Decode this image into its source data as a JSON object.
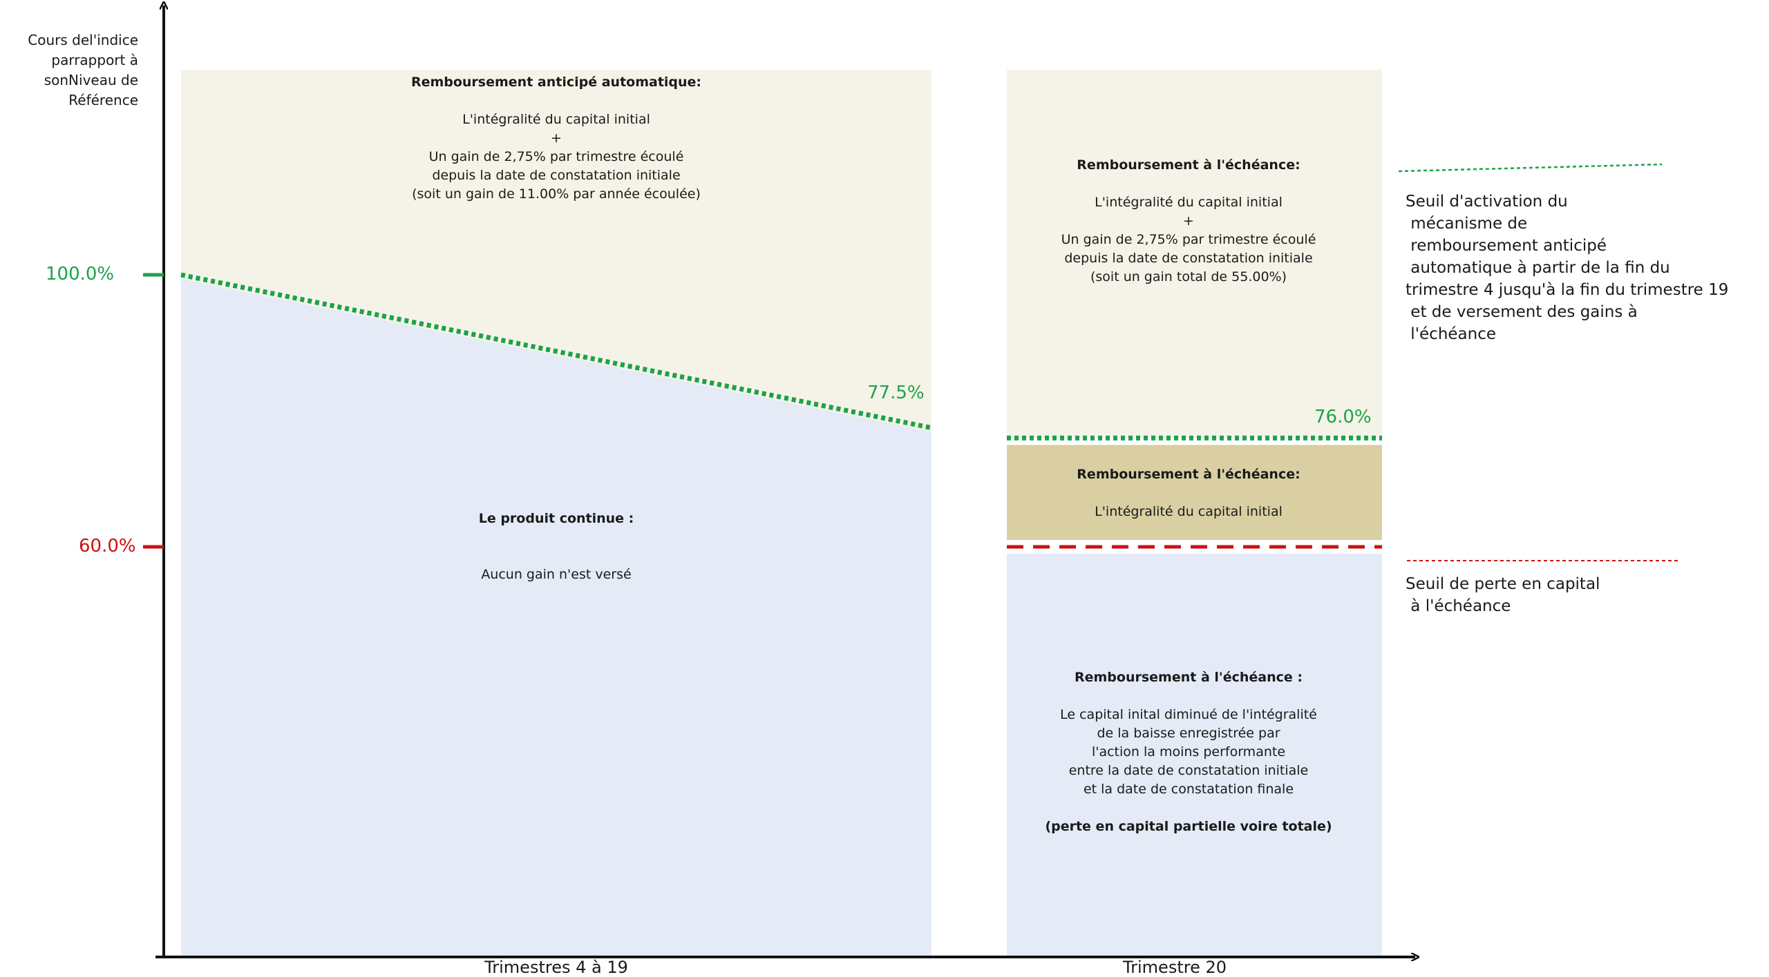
{
  "y_axis": {
    "title_lines": [
      "Cours de",
      "l'indice par",
      "rapport à son",
      "Niveau de Référence"
    ]
  },
  "levels": {
    "autocall": {
      "label": "100.0%",
      "value": 100.0,
      "color": "#1aa34a"
    },
    "barrier": {
      "label": "60.0%",
      "value": 60.0,
      "color": "#cc1111"
    }
  },
  "periods": [
    {
      "label": "Trimestres 4 à 19",
      "threshold_start": 100.0,
      "threshold_end": 77.5,
      "threshold_end_label": "77.5%",
      "upper_zone": {
        "lines": [
          {
            "text": "Remboursement anticipé automatique:",
            "bold": true
          },
          {
            "text": "",
            "gap": true
          },
          {
            "text": "L'intégralité du capital initial"
          },
          {
            "text": "+"
          },
          {
            "text": "Un gain de 2,75% par trimestre écoulé"
          },
          {
            "text": "depuis la date de constatation initiale"
          },
          {
            "text": "(soit un gain de 11.00% par année écoulée)"
          }
        ]
      },
      "lower_zone": {
        "lines": [
          {
            "text": "Le produit continue :",
            "bold": true
          },
          {
            "text": "",
            "gap": true
          },
          {
            "text": "",
            "gap": true
          },
          {
            "text": "Aucun gain n'est versé"
          }
        ]
      }
    },
    {
      "label": "Trimestre 20",
      "threshold": 76.0,
      "threshold_label": "76.0%",
      "upper_zone": {
        "lines": [
          {
            "text": "Remboursement à l'échéance:",
            "bold": true
          },
          {
            "text": "",
            "gap": true
          },
          {
            "text": "L'intégralité du capital initial"
          },
          {
            "text": "+"
          },
          {
            "text": "Un gain de 2,75% par trimestre écoulé"
          },
          {
            "text": "depuis la date de constatation initiale"
          },
          {
            "text": "(soit un gain total de 55.00%)"
          }
        ]
      },
      "middle_zone": {
        "lines": [
          {
            "text": "Remboursement à l'échéance:",
            "bold": true
          },
          {
            "text": "",
            "gap": true
          },
          {
            "text": "L'intégralité du capital initial"
          }
        ]
      },
      "lower_zone": {
        "lines": [
          {
            "text": "Remboursement à l'échéance :",
            "bold": true
          },
          {
            "text": "",
            "gap": true
          },
          {
            "text": "Le capital inital diminué de l'intégralité"
          },
          {
            "text": "de la baisse enregistrée par"
          },
          {
            "text": "l'action la moins performante"
          },
          {
            "text": "entre la date de constatation initiale"
          },
          {
            "text": "et la date de constatation finale"
          },
          {
            "text": "",
            "gap": true
          },
          {
            "text": "(perte en capital partielle voire totale)",
            "bold": true
          }
        ]
      }
    }
  ],
  "legend": {
    "autocall_text": [
      "Seuil d'activation du",
      " mécanisme de",
      " remboursement anticipé",
      " automatique à partir de la fin du",
      "trimestre 4 jusqu'à la fin du trimestre 19",
      " et de versement des gains à",
      " l'échéance"
    ],
    "barrier_text": [
      "Seuil de perte en capital",
      " à l'échéance"
    ]
  },
  "colors": {
    "upper_zone": "#f5f3e8",
    "middle_zone": "#d9cfa3",
    "lower_zone": "#e4eaf6",
    "green": "#1aa34a",
    "red": "#cc1111",
    "axis": "#111111"
  }
}
